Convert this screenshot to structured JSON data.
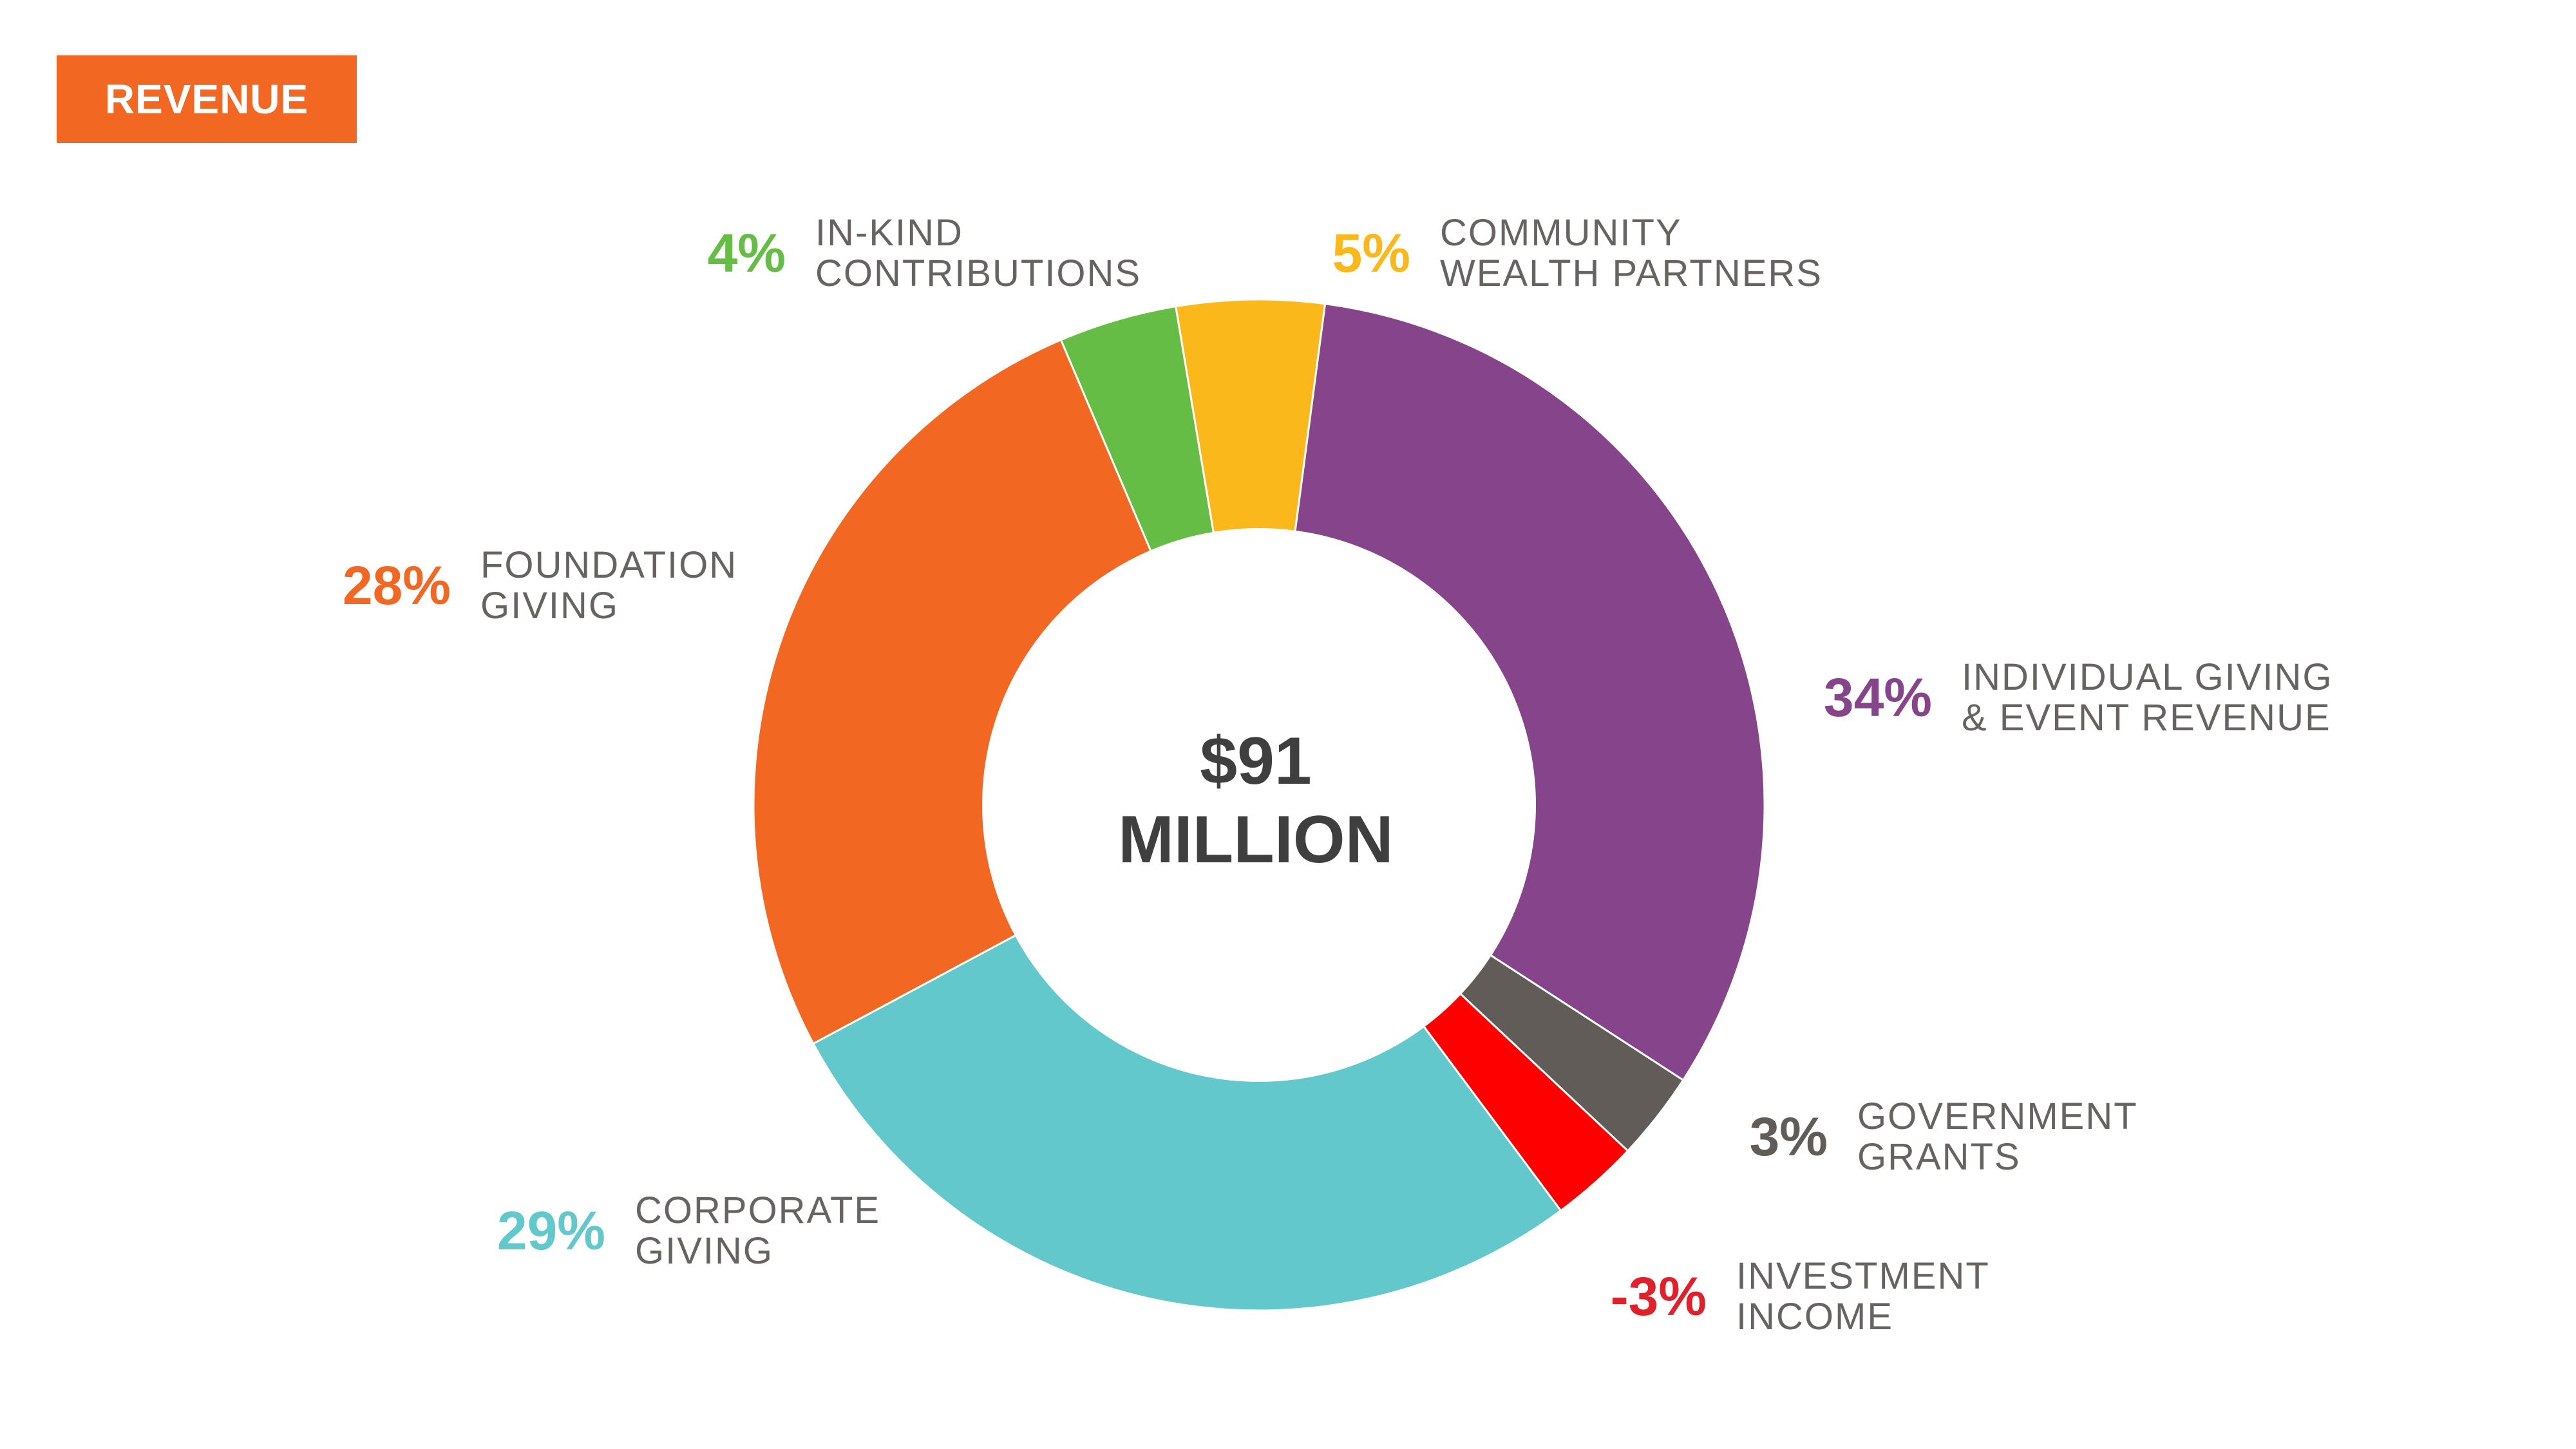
{
  "header": {
    "badge_label": "REVENUE"
  },
  "center": {
    "line1": "$91",
    "line2": "MILLION"
  },
  "chart_data": {
    "type": "pie",
    "donut": true,
    "title": "REVENUE",
    "total_label": "$91 MILLION",
    "slices": [
      {
        "key": "individual",
        "value": 34,
        "pct_label": "34%",
        "name_lines": [
          "INDIVIDUAL GIVING",
          "& EVENT REVENUE"
        ],
        "color": "#86458a"
      },
      {
        "key": "government",
        "value": 3,
        "pct_label": "3%",
        "name_lines": [
          "GOVERNMENT",
          "GRANTS"
        ],
        "color": "#625c58"
      },
      {
        "key": "investment",
        "value": -3,
        "pct_label": "-3%",
        "name_lines": [
          "INVESTMENT",
          "INCOME"
        ],
        "color": "#fe0000",
        "label_color": "#e0202a"
      },
      {
        "key": "corporate",
        "value": 29,
        "pct_label": "29%",
        "name_lines": [
          "CORPORATE",
          "GIVING"
        ],
        "color": "#63c8cb"
      },
      {
        "key": "foundation",
        "value": 28,
        "pct_label": "28%",
        "name_lines": [
          "FOUNDATION",
          "GIVING"
        ],
        "color": "#f26722"
      },
      {
        "key": "inkind",
        "value": 4,
        "pct_label": "4%",
        "name_lines": [
          "IN-KIND",
          "CONTRIBUTIONS"
        ],
        "color": "#65bd45"
      },
      {
        "key": "cwp",
        "value": 5,
        "pct_label": "5%",
        "name_lines": [
          "COMMUNITY",
          "WEALTH PARTNERS"
        ],
        "color": "#fbb81b"
      }
    ],
    "colors": {
      "badge": "#f26722",
      "center_text": "#3f3f3f",
      "label_text": "#666360"
    }
  }
}
